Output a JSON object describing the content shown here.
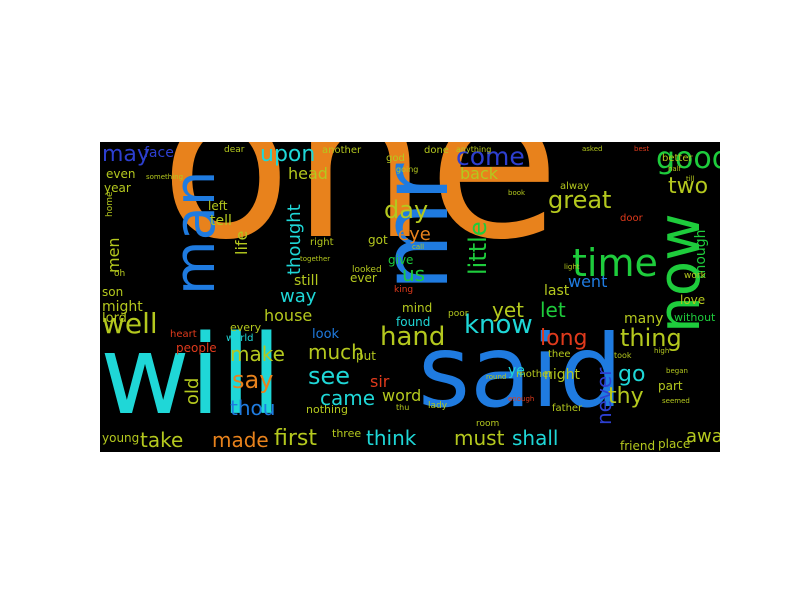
{
  "wordcloud": {
    "background_color": "#000000",
    "words": [
      {
        "text": "one",
        "color": "#e8821c"
      },
      {
        "text": "will",
        "color": "#1fd7d7"
      },
      {
        "text": "said",
        "color": "#1f7be0"
      },
      {
        "text": "mr",
        "color": "#1f7be0"
      },
      {
        "text": "now",
        "color": "#1ecc3c"
      },
      {
        "text": "man",
        "color": "#1f7be0"
      },
      {
        "text": "time",
        "color": "#1ecc3c"
      },
      {
        "text": "good",
        "color": "#1ecc3c"
      },
      {
        "text": "come",
        "color": "#2d3fd0"
      },
      {
        "text": "day",
        "color": "#b4c81e"
      },
      {
        "text": "well",
        "color": "#b4c81e"
      },
      {
        "text": "little",
        "color": "#1ecc3c"
      },
      {
        "text": "know",
        "color": "#1fd7d7"
      },
      {
        "text": "hand",
        "color": "#b4c81e"
      },
      {
        "text": "great",
        "color": "#b4c81e"
      },
      {
        "text": "upon",
        "color": "#1fd7d7"
      },
      {
        "text": "may",
        "color": "#2d3fd0"
      },
      {
        "text": "two",
        "color": "#b4c81e"
      },
      {
        "text": "say",
        "color": "#e8821c"
      },
      {
        "text": "see",
        "color": "#1fd7d7"
      },
      {
        "text": "thing",
        "color": "#b4c81e"
      },
      {
        "text": "long",
        "color": "#e03a1c"
      },
      {
        "text": "made",
        "color": "#e8821c"
      },
      {
        "text": "first",
        "color": "#b4c81e"
      },
      {
        "text": "must",
        "color": "#b4c81e"
      },
      {
        "text": "shall",
        "color": "#1fd7d7"
      },
      {
        "text": "think",
        "color": "#1fd7d7"
      },
      {
        "text": "take",
        "color": "#b4c81e"
      },
      {
        "text": "thou",
        "color": "#1f7be0"
      },
      {
        "text": "came",
        "color": "#1fd7d7"
      },
      {
        "text": "much",
        "color": "#b4c81e"
      },
      {
        "text": "make",
        "color": "#b4c81e"
      },
      {
        "text": "go",
        "color": "#1fd7d7"
      },
      {
        "text": "never",
        "color": "#2d3fd0"
      },
      {
        "text": "thy",
        "color": "#b4c81e"
      },
      {
        "text": "let",
        "color": "#1ecc3c"
      },
      {
        "text": "yet",
        "color": "#b4c81e"
      },
      {
        "text": "us",
        "color": "#1ecc3c"
      },
      {
        "text": "eye",
        "color": "#e8821c"
      },
      {
        "text": "thought",
        "color": "#1fd7d7"
      },
      {
        "text": "men",
        "color": "#b4c81e"
      },
      {
        "text": "life",
        "color": "#b4c81e"
      },
      {
        "text": "way",
        "color": "#1fd7d7"
      },
      {
        "text": "house",
        "color": "#b4c81e"
      },
      {
        "text": "word",
        "color": "#b4c81e"
      },
      {
        "text": "old",
        "color": "#b4c81e"
      },
      {
        "text": "away",
        "color": "#b4c81e"
      },
      {
        "text": "back",
        "color": "#b4c81e"
      },
      {
        "text": "head",
        "color": "#b4c81e"
      },
      {
        "text": "tell",
        "color": "#b4c81e"
      },
      {
        "text": "left",
        "color": "#b4c81e"
      },
      {
        "text": "went",
        "color": "#1f7be0"
      },
      {
        "text": "many",
        "color": "#b4c81e"
      },
      {
        "text": "though",
        "color": "#1ecc3c"
      },
      {
        "text": "still",
        "color": "#b4c81e"
      },
      {
        "text": "look",
        "color": "#1f7be0"
      },
      {
        "text": "sir",
        "color": "#e03a1c"
      },
      {
        "text": "night",
        "color": "#b4c81e"
      },
      {
        "text": "ye",
        "color": "#1fd7d7"
      },
      {
        "text": "last",
        "color": "#b4c81e"
      },
      {
        "text": "mind",
        "color": "#b4c81e"
      },
      {
        "text": "found",
        "color": "#1fd7d7"
      },
      {
        "text": "give",
        "color": "#1ecc3c"
      },
      {
        "text": "got",
        "color": "#b4c81e"
      },
      {
        "text": "ever",
        "color": "#b4c81e"
      },
      {
        "text": "lord",
        "color": "#b4c81e"
      },
      {
        "text": "might",
        "color": "#b4c81e"
      },
      {
        "text": "son",
        "color": "#b4c81e"
      },
      {
        "text": "year",
        "color": "#b4c81e"
      },
      {
        "text": "even",
        "color": "#b4c81e"
      },
      {
        "text": "face",
        "color": "#2d3fd0"
      },
      {
        "text": "young",
        "color": "#b4c81e"
      },
      {
        "text": "friend",
        "color": "#b4c81e"
      },
      {
        "text": "place",
        "color": "#b4c81e"
      },
      {
        "text": "love",
        "color": "#b4c81e"
      },
      {
        "text": "without",
        "color": "#1ecc3c"
      },
      {
        "text": "part",
        "color": "#b4c81e"
      },
      {
        "text": "put",
        "color": "#b4c81e"
      },
      {
        "text": "people",
        "color": "#e03a1c"
      },
      {
        "text": "nothing",
        "color": "#b4c81e"
      },
      {
        "text": "three",
        "color": "#b4c81e"
      },
      {
        "text": "every",
        "color": "#b4c81e"
      },
      {
        "text": "world",
        "color": "#1fd7d7"
      },
      {
        "text": "heart",
        "color": "#e03a1c"
      },
      {
        "text": "god",
        "color": "#b4c81e"
      },
      {
        "text": "another",
        "color": "#b4c81e"
      },
      {
        "text": "done",
        "color": "#b4c81e"
      },
      {
        "text": "better",
        "color": "#b4c81e"
      },
      {
        "text": "alway",
        "color": "#b4c81e"
      },
      {
        "text": "door",
        "color": "#e03a1c"
      },
      {
        "text": "mother",
        "color": "#b4c81e"
      },
      {
        "text": "father",
        "color": "#b4c81e"
      },
      {
        "text": "thee",
        "color": "#b4c81e"
      },
      {
        "text": "lady",
        "color": "#b4c81e"
      },
      {
        "text": "room",
        "color": "#b4c81e"
      },
      {
        "text": "poor",
        "color": "#b4c81e"
      },
      {
        "text": "work",
        "color": "#b4c81e"
      },
      {
        "text": "right",
        "color": "#b4c81e"
      },
      {
        "text": "home",
        "color": "#b4c81e"
      },
      {
        "text": "oh",
        "color": "#b4c81e"
      },
      {
        "text": "looked",
        "color": "#b4c81e"
      },
      {
        "text": "king",
        "color": "#e03a1c"
      },
      {
        "text": "dear",
        "color": "#b4c81e"
      },
      {
        "text": "anything",
        "color": "#b4c81e"
      },
      {
        "text": "something",
        "color": "#b4c81e"
      },
      {
        "text": "going",
        "color": "#b4c81e"
      },
      {
        "text": "side",
        "color": "#e8821c"
      },
      {
        "text": "together",
        "color": "#b4c81e"
      },
      {
        "text": "light",
        "color": "#b4c81e"
      },
      {
        "text": "half",
        "color": "#b4c81e"
      },
      {
        "text": "till",
        "color": "#b4c81e"
      },
      {
        "text": "began",
        "color": "#b4c81e"
      },
      {
        "text": "high",
        "color": "#b4c81e"
      },
      {
        "text": "seemed",
        "color": "#b4c81e"
      },
      {
        "text": "enough",
        "color": "#e03a1c"
      },
      {
        "text": "thu",
        "color": "#b4c81e"
      },
      {
        "text": "call",
        "color": "#b4c81e"
      },
      {
        "text": "took",
        "color": "#b4c81e"
      },
      {
        "text": "round",
        "color": "#b4c81e"
      },
      {
        "text": "asked",
        "color": "#b4c81e"
      },
      {
        "text": "book",
        "color": "#b4c81e"
      },
      {
        "text": "best",
        "color": "#e03a1c"
      }
    ]
  }
}
